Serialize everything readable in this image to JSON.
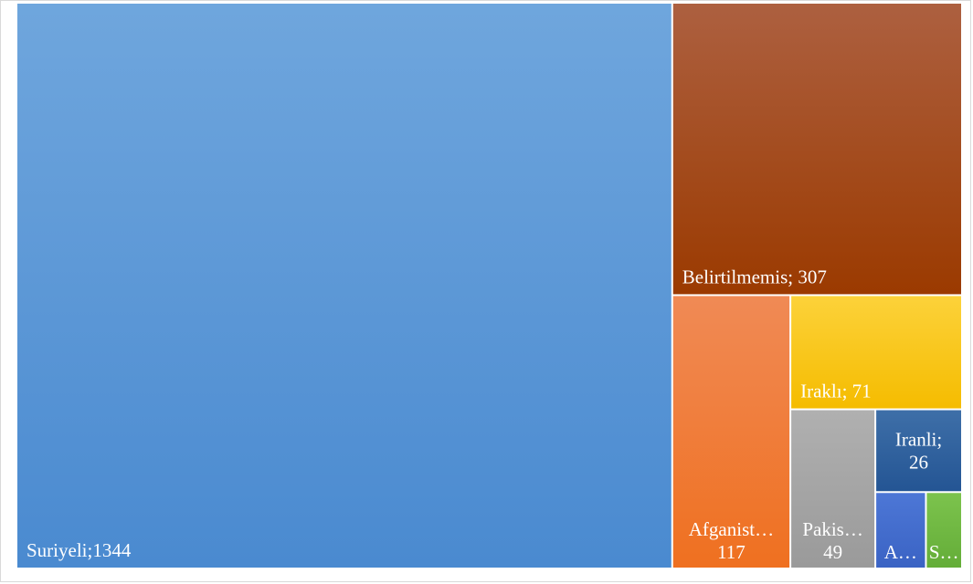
{
  "chart_data": {
    "type": "treemap",
    "title": "",
    "items": [
      {
        "name": "Suriyeli",
        "value": 1344,
        "label_lines": [
          "Suriyeli;1344"
        ],
        "color_top": "#6fa6dd",
        "color_bottom": "#4a8ad0",
        "label_pos": "bottom-left"
      },
      {
        "name": "Belirtilmemis",
        "value": 307,
        "label_lines": [
          "Belirtilmemis; 307"
        ],
        "color_top": "#ad6040",
        "color_bottom": "#9b3a00",
        "label_pos": "bottom-left"
      },
      {
        "name": "Afganist…",
        "value": 117,
        "label_lines": [
          "Afganist…",
          "117"
        ],
        "color_top": "#f08a55",
        "color_bottom": "#ef7020",
        "label_pos": "bottom-center"
      },
      {
        "name": "Iraklı",
        "value": 71,
        "label_lines": [
          "Iraklı; 71"
        ],
        "color_top": "#fcd23a",
        "color_bottom": "#f5bc00",
        "label_pos": "bottom-left"
      },
      {
        "name": "Pakis…",
        "value": 49,
        "label_lines": [
          "Pakis…",
          "49"
        ],
        "color_top": "#b0b0b0",
        "color_bottom": "#9a9a9a",
        "label_pos": "bottom-center"
      },
      {
        "name": "Iranli",
        "value": 26,
        "label_lines": [
          "Iranli;",
          "26"
        ],
        "color_top": "#3e6fa8",
        "color_bottom": "#245594",
        "label_pos": "center"
      },
      {
        "name": "A…",
        "value": 14,
        "label_lines": [
          "A…"
        ],
        "color_top": "#4d77d6",
        "color_bottom": "#3a63c4",
        "label_pos": "bottom-center"
      },
      {
        "name": "S…",
        "value": 10,
        "label_lines": [
          "S…"
        ],
        "color_top": "#7cc34d",
        "color_bottom": "#64ad38",
        "label_pos": "bottom-center"
      }
    ]
  }
}
